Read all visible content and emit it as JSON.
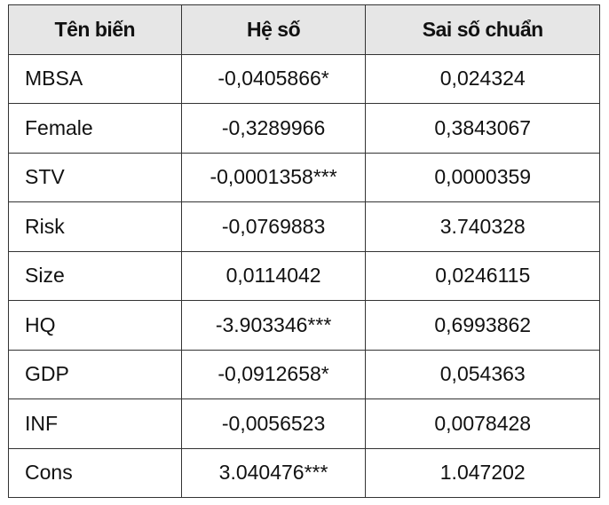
{
  "table": {
    "header": [
      "Tên biến",
      "Hệ số",
      "Sai số chuẩn"
    ],
    "rows": [
      [
        "MBSA",
        "-0,0405866*",
        "0,024324"
      ],
      [
        "Female",
        "-0,3289966",
        "0,3843067"
      ],
      [
        "STV",
        "-0,0001358***",
        "0,0000359"
      ],
      [
        "Risk",
        "-0,0769883",
        "3.740328"
      ],
      [
        "Size",
        "0,0114042",
        "0,0246115"
      ],
      [
        "HQ",
        "-3.903346***",
        "0,6993862"
      ],
      [
        "GDP",
        "-0,0912658*",
        "0,054363"
      ],
      [
        "INF",
        "-0,0056523",
        "0,0078428"
      ],
      [
        "Cons",
        "3.040476***",
        "1.047202"
      ]
    ]
  }
}
